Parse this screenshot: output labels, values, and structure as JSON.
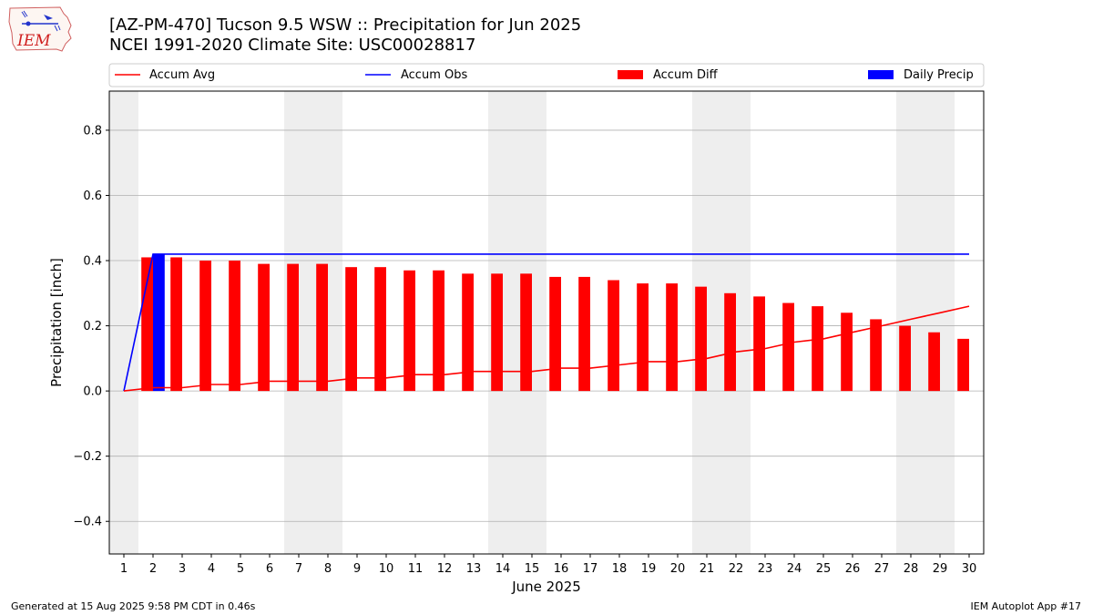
{
  "logo": {
    "text": "IEM",
    "icon": "iem-iowa-weather-logo"
  },
  "header": {
    "title": "[AZ-PM-470] Tucson 9.5 WSW :: Precipitation for Jun 2025",
    "subtitle": "NCEI 1991-2020 Climate Site: USC00028817"
  },
  "footer": {
    "left": "Generated at 15 Aug 2025 9:58 PM CDT in 0.46s",
    "right": "IEM Autoplot App #17"
  },
  "colors": {
    "avg": "#ff0000",
    "obs": "#0000ff",
    "diff": "#ff0000",
    "daily": "#0000ff",
    "weekend": "#eeeeee",
    "grid": "#b0b0b0"
  },
  "chart_data": {
    "type": "bar",
    "xlabel": "June 2025",
    "ylabel": "Precipitation [inch]",
    "xlim": [
      0.5,
      30.5
    ],
    "ylim": [
      -0.5,
      0.92
    ],
    "yticks": [
      -0.4,
      -0.2,
      0.0,
      0.2,
      0.4,
      0.6,
      0.8
    ],
    "ytick_labels": [
      "−0.4",
      "−0.2",
      "0.0",
      "0.2",
      "0.4",
      "0.6",
      "0.8"
    ],
    "xticks": [
      1,
      2,
      3,
      4,
      5,
      6,
      7,
      8,
      9,
      10,
      11,
      12,
      13,
      14,
      15,
      16,
      17,
      18,
      19,
      20,
      21,
      22,
      23,
      24,
      25,
      26,
      27,
      28,
      29,
      30
    ],
    "xtick_labels": [
      "1",
      "2",
      "3",
      "4",
      "5",
      "6",
      "7",
      "8",
      "9",
      "10",
      "11",
      "12",
      "13",
      "14",
      "15",
      "16",
      "17",
      "18",
      "19",
      "20",
      "21",
      "22",
      "23",
      "24",
      "25",
      "26",
      "27",
      "28",
      "29",
      "30"
    ],
    "grid": "y",
    "weekend_days": [
      1,
      7,
      8,
      14,
      15,
      21,
      22,
      28,
      29
    ],
    "legend": {
      "placement": "top",
      "entries": [
        "Accum Avg",
        "Accum Obs",
        "Accum Diff",
        "Daily Precip"
      ]
    },
    "series": [
      {
        "name": "Accum Avg",
        "kind": "line",
        "values": [
          0.0,
          0.01,
          0.01,
          0.02,
          0.02,
          0.03,
          0.03,
          0.03,
          0.04,
          0.04,
          0.05,
          0.05,
          0.06,
          0.06,
          0.06,
          0.07,
          0.07,
          0.08,
          0.09,
          0.09,
          0.1,
          0.12,
          0.13,
          0.15,
          0.16,
          0.18,
          0.2,
          0.22,
          0.24,
          0.26
        ]
      },
      {
        "name": "Accum Obs",
        "kind": "line",
        "values": [
          0.0,
          0.42,
          0.42,
          0.42,
          0.42,
          0.42,
          0.42,
          0.42,
          0.42,
          0.42,
          0.42,
          0.42,
          0.42,
          0.42,
          0.42,
          0.42,
          0.42,
          0.42,
          0.42,
          0.42,
          0.42,
          0.42,
          0.42,
          0.42,
          0.42,
          0.42,
          0.42,
          0.42,
          0.42,
          0.42
        ]
      },
      {
        "name": "Accum Diff",
        "kind": "bar",
        "values": [
          0.0,
          0.41,
          0.41,
          0.4,
          0.4,
          0.39,
          0.39,
          0.39,
          0.38,
          0.38,
          0.37,
          0.37,
          0.36,
          0.36,
          0.36,
          0.35,
          0.35,
          0.34,
          0.33,
          0.33,
          0.32,
          0.3,
          0.29,
          0.27,
          0.26,
          0.24,
          0.22,
          0.2,
          0.18,
          0.16
        ]
      },
      {
        "name": "Daily Precip",
        "kind": "bar",
        "values": [
          0.0,
          0.42,
          0.0,
          0.0,
          0.0,
          0.0,
          0.0,
          0.0,
          0.0,
          0.0,
          0.0,
          0.0,
          0.0,
          0.0,
          0.0,
          0.0,
          0.0,
          0.0,
          0.0,
          0.0,
          0.0,
          0.0,
          0.0,
          0.0,
          0.0,
          0.0,
          0.0,
          0.0,
          0.0,
          0.0
        ]
      }
    ]
  }
}
